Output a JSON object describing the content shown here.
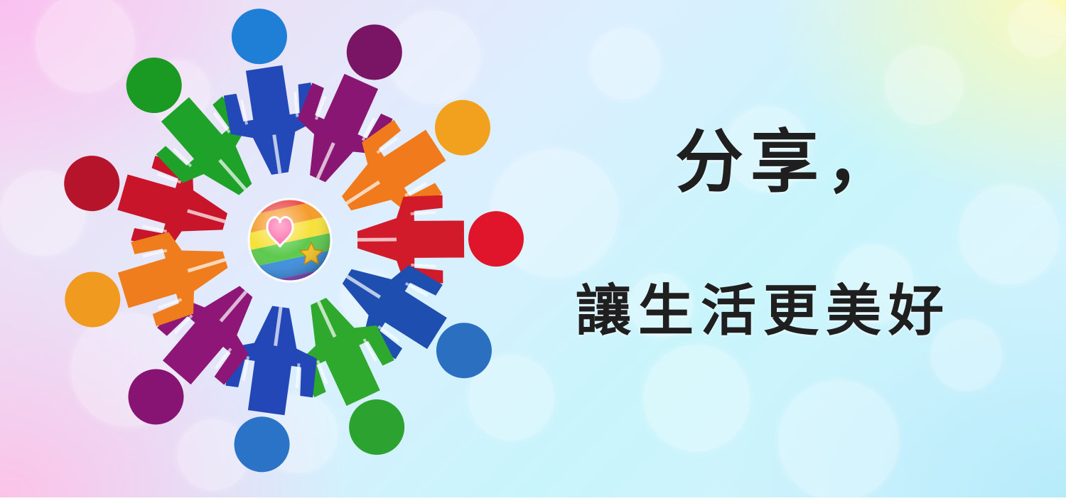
{
  "headline": {
    "line1": "分享，",
    "line2": "讓生活更美好"
  },
  "logo": {
    "figures": [
      {
        "color": "#c8152a",
        "head": "#b5142a"
      },
      {
        "color": "#1fa22a",
        "head": "#1a9a23"
      },
      {
        "color": "#2348b8",
        "head": "#1f7fd6"
      },
      {
        "color": "#8a1673",
        "head": "#7a1465"
      },
      {
        "color": "#f07a1c",
        "head": "#f2a11e"
      },
      {
        "color": "#d11a2a",
        "head": "#e0152b"
      },
      {
        "color": "#1e4fb0",
        "head": "#2a6fc0"
      },
      {
        "color": "#2ea82d",
        "head": "#2ca330"
      },
      {
        "color": "#2347b6",
        "head": "#2b73c7"
      },
      {
        "color": "#8d1677",
        "head": "#871473"
      },
      {
        "color": "#ef7d1d",
        "head": "#f09a1f"
      }
    ],
    "center_ball": {
      "stripes": [
        "#e94b4b",
        "#f59b2c",
        "#f6e13a",
        "#5cc94d",
        "#3d8fe0",
        "#8a4fc6"
      ],
      "heart_color": "#ff4f9a",
      "star_color": "#f3c224"
    }
  }
}
